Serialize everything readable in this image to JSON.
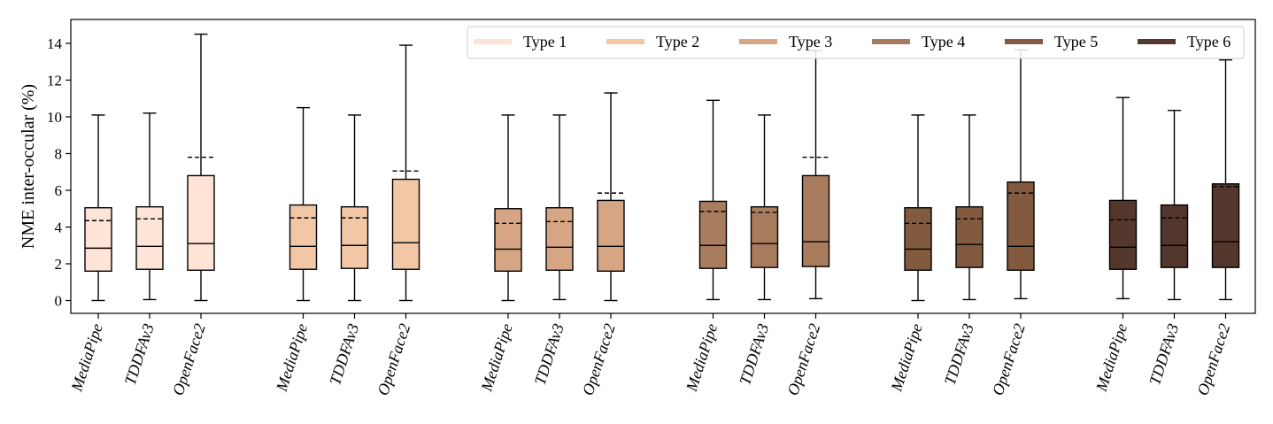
{
  "chart_data": {
    "type": "box",
    "ylabel": "NME inter-occular (%)",
    "ylim": [
      -0.9,
      15.2
    ],
    "yticks": [
      0,
      2,
      4,
      6,
      8,
      10,
      12,
      14
    ],
    "grid": false,
    "legend_position": "top-right",
    "categories": [
      "MediaPipe",
      "TDDFAv3",
      "OpenFace2"
    ],
    "groups": [
      {
        "name": "Type 1",
        "color": "#fde4d6",
        "boxes": [
          {
            "category": "MediaPipe",
            "min": 0.0,
            "q1": 1.6,
            "median": 2.85,
            "mean": 4.35,
            "q3": 5.05,
            "max": 10.1
          },
          {
            "category": "TDDFAv3",
            "min": 0.05,
            "q1": 1.7,
            "median": 2.95,
            "mean": 4.45,
            "q3": 5.1,
            "max": 10.2
          },
          {
            "category": "OpenFace2",
            "min": 0.0,
            "q1": 1.65,
            "median": 3.1,
            "mean": 7.8,
            "q3": 6.8,
            "max": 14.5
          }
        ]
      },
      {
        "name": "Type 2",
        "color": "#f2c7a6",
        "boxes": [
          {
            "category": "MediaPipe",
            "min": 0.0,
            "q1": 1.7,
            "median": 2.95,
            "mean": 4.5,
            "q3": 5.2,
            "max": 10.5
          },
          {
            "category": "TDDFAv3",
            "min": 0.0,
            "q1": 1.75,
            "median": 3.0,
            "mean": 4.5,
            "q3": 5.1,
            "max": 10.1
          },
          {
            "category": "OpenFace2",
            "min": 0.0,
            "q1": 1.7,
            "median": 3.15,
            "mean": 7.05,
            "q3": 6.6,
            "max": 13.9
          }
        ]
      },
      {
        "name": "Type 3",
        "color": "#d6a583",
        "boxes": [
          {
            "category": "MediaPipe",
            "min": 0.0,
            "q1": 1.6,
            "median": 2.8,
            "mean": 4.2,
            "q3": 5.0,
            "max": 10.1
          },
          {
            "category": "TDDFAv3",
            "min": 0.05,
            "q1": 1.65,
            "median": 2.9,
            "mean": 4.3,
            "q3": 5.05,
            "max": 10.1
          },
          {
            "category": "OpenFace2",
            "min": 0.0,
            "q1": 1.6,
            "median": 2.95,
            "mean": 5.85,
            "q3": 5.45,
            "max": 11.3
          }
        ]
      },
      {
        "name": "Type 4",
        "color": "#aa7c5e",
        "boxes": [
          {
            "category": "MediaPipe",
            "min": 0.05,
            "q1": 1.75,
            "median": 3.0,
            "mean": 4.85,
            "q3": 5.4,
            "max": 10.9
          },
          {
            "category": "TDDFAv3",
            "min": 0.05,
            "q1": 1.8,
            "median": 3.1,
            "mean": 4.8,
            "q3": 5.1,
            "max": 10.1
          },
          {
            "category": "OpenFace2",
            "min": 0.1,
            "q1": 1.85,
            "median": 3.2,
            "mean": 7.8,
            "q3": 6.8,
            "max": 13.6
          }
        ]
      },
      {
        "name": "Type 5",
        "color": "#825a3f",
        "boxes": [
          {
            "category": "MediaPipe",
            "min": 0.0,
            "q1": 1.65,
            "median": 2.8,
            "mean": 4.2,
            "q3": 5.05,
            "max": 10.1
          },
          {
            "category": "TDDFAv3",
            "min": 0.05,
            "q1": 1.8,
            "median": 3.05,
            "mean": 4.45,
            "q3": 5.1,
            "max": 10.1
          },
          {
            "category": "OpenFace2",
            "min": 0.1,
            "q1": 1.65,
            "median": 2.95,
            "mean": 5.85,
            "q3": 6.45,
            "max": 13.65
          }
        ]
      },
      {
        "name": "Type 6",
        "color": "#54372c",
        "boxes": [
          {
            "category": "MediaPipe",
            "min": 0.1,
            "q1": 1.7,
            "median": 2.9,
            "mean": 4.4,
            "q3": 5.45,
            "max": 11.05
          },
          {
            "category": "TDDFAv3",
            "min": 0.05,
            "q1": 1.8,
            "median": 3.0,
            "mean": 4.5,
            "q3": 5.2,
            "max": 10.35
          },
          {
            "category": "OpenFace2",
            "min": 0.05,
            "q1": 1.8,
            "median": 3.2,
            "mean": 6.2,
            "q3": 6.35,
            "max": 13.1
          }
        ]
      }
    ]
  }
}
